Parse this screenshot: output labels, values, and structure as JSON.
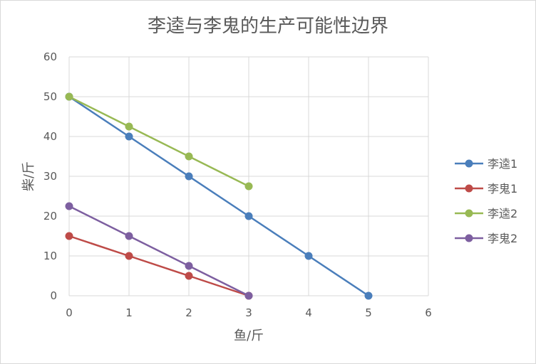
{
  "chart_data": {
    "type": "line",
    "title": "李逵与李鬼的生产可能性边界",
    "xlabel": "鱼/斤",
    "ylabel": "柴/斤",
    "xlim": [
      0,
      6
    ],
    "ylim": [
      0,
      60
    ],
    "x_ticks": [
      0,
      1,
      2,
      3,
      4,
      5,
      6
    ],
    "y_ticks": [
      0,
      10,
      20,
      30,
      40,
      50,
      60
    ],
    "grid": true,
    "legend_position": "right",
    "series": [
      {
        "name": "李逵1",
        "color": "#4a7ebb",
        "points": [
          [
            0,
            50
          ],
          [
            1,
            40
          ],
          [
            2,
            30
          ],
          [
            3,
            20
          ],
          [
            4,
            10
          ],
          [
            5,
            0
          ]
        ]
      },
      {
        "name": "李鬼1",
        "color": "#be4b48",
        "points": [
          [
            0,
            15
          ],
          [
            1,
            10
          ],
          [
            2,
            5
          ],
          [
            3,
            0
          ]
        ]
      },
      {
        "name": "李逵2",
        "color": "#98b954",
        "points": [
          [
            0,
            50
          ],
          [
            1,
            42.5
          ],
          [
            2,
            35
          ],
          [
            3,
            27.5
          ]
        ]
      },
      {
        "name": "李鬼2",
        "color": "#7d5fa0",
        "points": [
          [
            0,
            22.5
          ],
          [
            1,
            15
          ],
          [
            2,
            7.5
          ],
          [
            3,
            0
          ]
        ]
      }
    ]
  }
}
